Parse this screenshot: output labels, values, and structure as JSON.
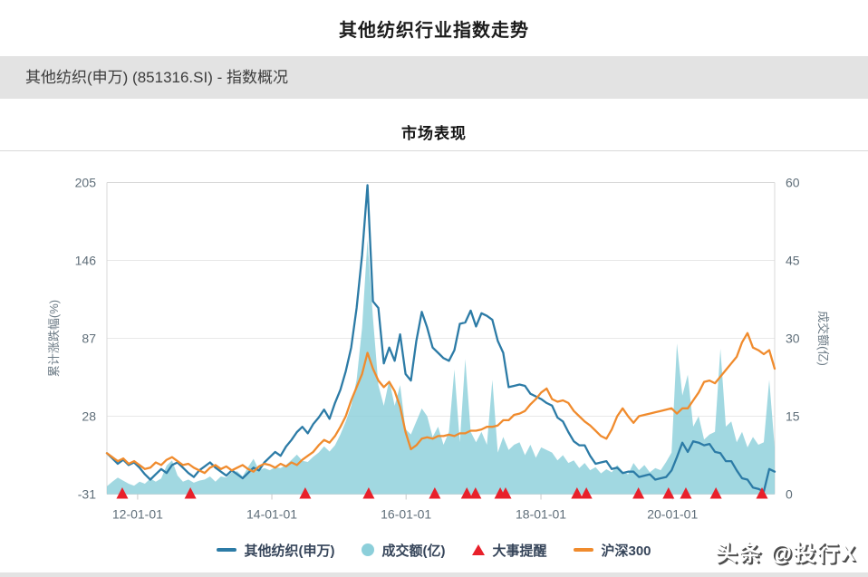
{
  "header": {
    "title": "其他纺织行业指数走势",
    "subtitle": "其他纺织(申万) (851316.SI) - 指数概况"
  },
  "watermark": {
    "text": "头条 @投行X"
  },
  "colors": {
    "index_line": "#2c7ba6",
    "volume_fill": "#8ccfda",
    "csi300_line": "#f08b2d",
    "event_marker": "#e8202a",
    "grid": "#e8e8e8",
    "axis_border": "#d8d8d8",
    "tick_text": "#5f6e79",
    "subtitle_bg": "#e3e3e3"
  },
  "legend": {
    "items": [
      {
        "label": "其他纺织(申万)",
        "swatch": "line",
        "color": "#2c7ba6"
      },
      {
        "label": "成交额(亿)",
        "swatch": "circle",
        "color": "#8ccfda"
      },
      {
        "label": "大事提醒",
        "swatch": "triangle",
        "color": "#e8202a"
      },
      {
        "label": "沪深300",
        "swatch": "line",
        "color": "#f08b2d"
      }
    ]
  },
  "chart_data": {
    "type": "line",
    "title": "市场表现",
    "left_axis": {
      "label": "累计涨跌幅(%)",
      "ticks": [
        205,
        146,
        87,
        28,
        -31
      ],
      "range": [
        -31,
        205
      ]
    },
    "right_axis": {
      "label": "成交额(亿)",
      "ticks": [
        60,
        45,
        30,
        15,
        0
      ],
      "range": [
        0,
        60
      ]
    },
    "x_axis": {
      "ticks": [
        "12-01-01",
        "14-01-01",
        "16-01-01",
        "18-01-01",
        "20-01-01"
      ],
      "tick_positions": [
        0.046,
        0.247,
        0.448,
        0.65,
        0.847
      ]
    },
    "series": [
      {
        "name": "成交额(亿)",
        "type": "area",
        "axis": "right",
        "color": "#8ccfda",
        "values": [
          1.5,
          2.4,
          3.2,
          2.6,
          2,
          1.6,
          2.4,
          2,
          3,
          2.4,
          3,
          5.5,
          6.5,
          3.6,
          2.4,
          2.8,
          2.2,
          2.6,
          2.8,
          3.4,
          2.4,
          3.4,
          3.2,
          4.2,
          4.4,
          3.4,
          5.2,
          6.8,
          4.6,
          5,
          4.6,
          5.2,
          5,
          5.6,
          6.6,
          7.6,
          6.4,
          6.2,
          7.2,
          8,
          9.2,
          8.2,
          9.4,
          11.5,
          14,
          17,
          22,
          32,
          49,
          34,
          21,
          17,
          22,
          17,
          21,
          12.5,
          11.5,
          14,
          16.5,
          15,
          11,
          13,
          9.5,
          12,
          24,
          10,
          26,
          12,
          10,
          12,
          9.5,
          22,
          8,
          11,
          8.5,
          9.5,
          10,
          7.5,
          9.5,
          7,
          9,
          8.5,
          8,
          6.5,
          7.5,
          6,
          6.5,
          5,
          6,
          4.6,
          5.2,
          4,
          4.8,
          4.2,
          5.6,
          4.4,
          3.8,
          6,
          4.6,
          5.6,
          4.2,
          5,
          4.6,
          6.2,
          8,
          29,
          19,
          23,
          13,
          15,
          10.5,
          11.5,
          12,
          28,
          13,
          14,
          10,
          12,
          9,
          11,
          9.5,
          10,
          22,
          9
        ]
      },
      {
        "name": "其他纺织(申万)",
        "type": "line",
        "axis": "left",
        "color": "#2c7ba6",
        "values": [
          0,
          -4,
          -8,
          -5,
          -9,
          -7,
          -11,
          -16,
          -20,
          -16,
          -12,
          -15,
          -9,
          -7,
          -11,
          -15,
          -18,
          -13,
          -10,
          -7,
          -11,
          -14,
          -17,
          -13,
          -16,
          -19,
          -15,
          -11,
          -13,
          -7,
          -3,
          1,
          -2,
          5,
          10,
          16,
          20,
          15,
          22,
          27,
          33,
          26,
          38,
          48,
          62,
          80,
          110,
          150,
          203,
          115,
          110,
          68,
          80,
          70,
          90,
          60,
          55,
          85,
          107,
          95,
          80,
          76,
          72,
          70,
          78,
          98,
          99,
          108,
          96,
          106,
          104,
          101,
          85,
          76,
          50,
          51,
          52,
          51,
          45,
          43,
          41,
          38,
          36,
          27,
          24,
          16,
          9,
          6,
          6,
          -2,
          -8,
          -7,
          -6,
          -12,
          -11,
          -15,
          -14,
          -14,
          -18,
          -17,
          -16,
          -20,
          -19,
          -18,
          -13,
          -3,
          8,
          1,
          9,
          8,
          6,
          7,
          1,
          0,
          -6,
          -6,
          -13,
          -19,
          -20,
          -26,
          -27,
          -29,
          -12,
          -14
        ]
      },
      {
        "name": "沪深300",
        "type": "line",
        "axis": "left",
        "color": "#f08b2d",
        "values": [
          0,
          -3,
          -6,
          -4,
          -8,
          -6,
          -9,
          -12,
          -11,
          -7,
          -9,
          -5,
          -3,
          -6,
          -9,
          -8,
          -11,
          -13,
          -15,
          -11,
          -9,
          -12,
          -10,
          -13,
          -11,
          -9,
          -12,
          -14,
          -10,
          -8,
          -9,
          -11,
          -8,
          -10,
          -7,
          -9,
          -5,
          -2,
          1,
          6,
          10,
          8,
          13,
          20,
          28,
          40,
          50,
          60,
          76,
          64,
          55,
          50,
          54,
          47,
          35,
          16,
          3,
          6,
          11,
          12,
          11,
          13,
          13,
          14,
          13,
          15,
          15,
          17,
          17,
          18,
          20,
          20,
          21,
          25,
          25,
          29,
          30,
          32,
          37,
          41,
          46,
          49,
          41,
          39,
          40,
          38,
          32,
          28,
          24,
          21,
          17,
          13,
          11,
          18,
          28,
          34,
          28,
          23,
          28,
          29,
          30,
          31,
          32,
          33,
          34,
          30,
          34,
          34,
          40,
          46,
          54,
          55,
          53,
          58,
          63,
          68,
          73,
          84,
          91,
          80,
          78,
          75,
          78,
          64
        ]
      }
    ],
    "events": {
      "name": "大事提醒",
      "color": "#e8202a",
      "x": [
        0.023,
        0.125,
        0.297,
        0.392,
        0.491,
        0.539,
        0.552,
        0.589,
        0.597,
        0.704,
        0.718,
        0.796,
        0.841,
        0.867,
        0.912,
        0.981
      ]
    }
  }
}
